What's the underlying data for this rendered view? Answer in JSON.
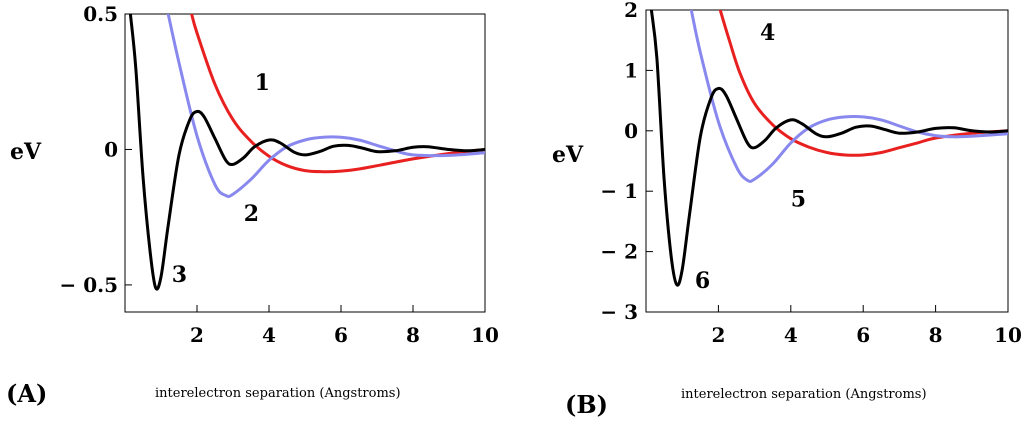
{
  "chart_data": [
    {
      "type": "line",
      "panel_label": "(A)",
      "xlabel": "interelectron separation (Angstroms)",
      "ylabel": "eV",
      "xlim": [
        0,
        10
      ],
      "ylim": [
        -0.6,
        0.5
      ],
      "xticks": [
        2,
        4,
        6,
        8,
        10
      ],
      "xtick_labels": [
        "2",
        "4",
        "6",
        "8",
        "10"
      ],
      "yticks": [
        -0.5,
        0,
        0.5
      ],
      "ytick_labels": [
        "− 0.5",
        "0",
        "0.5"
      ],
      "grid": false,
      "series": [
        {
          "name": "1",
          "color": "#e8201f",
          "label": {
            "x": 3.6,
            "y": 0.22
          },
          "x": [
            1.85,
            2.0,
            2.5,
            3.0,
            3.5,
            4.0,
            4.5,
            5.0,
            5.5,
            6.0,
            6.5,
            7.0,
            8.0,
            9.0,
            10.0
          ],
          "y": [
            0.5,
            0.43,
            0.24,
            0.11,
            0.03,
            -0.025,
            -0.06,
            -0.078,
            -0.082,
            -0.08,
            -0.072,
            -0.06,
            -0.035,
            -0.015,
            0.0
          ]
        },
        {
          "name": "2",
          "color": "#8888ee",
          "label": {
            "x": 3.3,
            "y": -0.265
          },
          "x": [
            1.2,
            1.5,
            2.0,
            2.5,
            2.8,
            3.0,
            3.5,
            4.0,
            4.5,
            5.0,
            5.5,
            6.0,
            6.5,
            7.0,
            7.5,
            8.0,
            9.0,
            10.0
          ],
          "y": [
            0.5,
            0.32,
            0.05,
            -0.13,
            -0.17,
            -0.165,
            -0.11,
            -0.04,
            0.01,
            0.035,
            0.045,
            0.045,
            0.035,
            0.015,
            -0.005,
            -0.02,
            -0.022,
            -0.012
          ]
        },
        {
          "name": "3",
          "color": "#000000",
          "label": {
            "x": 1.3,
            "y": -0.49
          },
          "x": [
            0.15,
            0.3,
            0.5,
            0.7,
            0.85,
            1.0,
            1.2,
            1.5,
            1.8,
            2.0,
            2.2,
            2.5,
            2.8,
            3.0,
            3.3,
            3.6,
            4.0,
            4.3,
            4.7,
            5.0,
            5.4,
            5.8,
            6.2,
            6.6,
            7.0,
            7.5,
            8.0,
            8.4,
            9.0,
            9.5,
            10.0
          ],
          "y": [
            0.5,
            0.3,
            -0.1,
            -0.38,
            -0.51,
            -0.47,
            -0.28,
            -0.02,
            0.11,
            0.14,
            0.12,
            0.04,
            -0.04,
            -0.055,
            -0.03,
            0.01,
            0.035,
            0.025,
            -0.01,
            -0.02,
            -0.008,
            0.012,
            0.015,
            0.005,
            -0.008,
            -0.005,
            0.008,
            0.01,
            0.0,
            -0.005,
            0.0
          ]
        }
      ]
    },
    {
      "type": "line",
      "panel_label": "(B)",
      "xlabel": "interelectron separation (Angstroms)",
      "ylabel": "eV",
      "xlim": [
        0,
        10
      ],
      "ylim": [
        -3,
        2
      ],
      "xticks": [
        2,
        4,
        6,
        8,
        10
      ],
      "xtick_labels": [
        "2",
        "4",
        "6",
        "8",
        "10"
      ],
      "yticks": [
        -3,
        -2,
        -1,
        0,
        1,
        2
      ],
      "ytick_labels": [
        "− 3",
        "− 2",
        "− 1",
        "0",
        "1",
        "2"
      ],
      "grid": false,
      "series": [
        {
          "name": "4",
          "color": "#e8201f",
          "label": {
            "x": 3.15,
            "y": 1.5
          },
          "x": [
            2.05,
            2.3,
            2.6,
            3.0,
            3.5,
            4.0,
            4.5,
            5.0,
            5.5,
            6.0,
            6.5,
            7.0,
            7.5,
            8.0,
            9.0,
            10.0
          ],
          "y": [
            2.0,
            1.5,
            0.95,
            0.45,
            0.1,
            -0.13,
            -0.27,
            -0.36,
            -0.4,
            -0.4,
            -0.36,
            -0.28,
            -0.2,
            -0.12,
            -0.04,
            0.0
          ]
        },
        {
          "name": "5",
          "color": "#8888ee",
          "label": {
            "x": 4.0,
            "y": -1.25
          },
          "x": [
            1.25,
            1.5,
            2.0,
            2.5,
            2.8,
            3.0,
            3.5,
            4.0,
            4.5,
            5.0,
            5.5,
            6.0,
            6.5,
            7.0,
            7.5,
            8.0,
            8.5,
            9.0,
            10.0
          ],
          "y": [
            2.0,
            1.3,
            0.15,
            -0.6,
            -0.82,
            -0.8,
            -0.55,
            -0.2,
            0.05,
            0.18,
            0.23,
            0.23,
            0.18,
            0.08,
            -0.02,
            -0.08,
            -0.1,
            -0.09,
            -0.05
          ]
        },
        {
          "name": "6",
          "color": "#000000",
          "label": {
            "x": 1.35,
            "y": -2.6
          },
          "x": [
            0.15,
            0.3,
            0.5,
            0.7,
            0.85,
            1.0,
            1.2,
            1.5,
            1.8,
            2.0,
            2.2,
            2.5,
            2.8,
            3.0,
            3.3,
            3.6,
            4.0,
            4.3,
            4.7,
            5.0,
            5.4,
            5.8,
            6.2,
            6.6,
            7.0,
            7.5,
            8.0,
            8.5,
            9.0,
            9.5,
            10.0
          ],
          "y": [
            2.0,
            1.2,
            -0.8,
            -2.1,
            -2.55,
            -2.3,
            -1.4,
            -0.1,
            0.55,
            0.7,
            0.6,
            0.2,
            -0.2,
            -0.28,
            -0.15,
            0.05,
            0.18,
            0.12,
            -0.05,
            -0.1,
            -0.04,
            0.06,
            0.08,
            0.02,
            -0.04,
            -0.02,
            0.04,
            0.05,
            0.0,
            -0.02,
            0.0
          ]
        }
      ]
    }
  ]
}
